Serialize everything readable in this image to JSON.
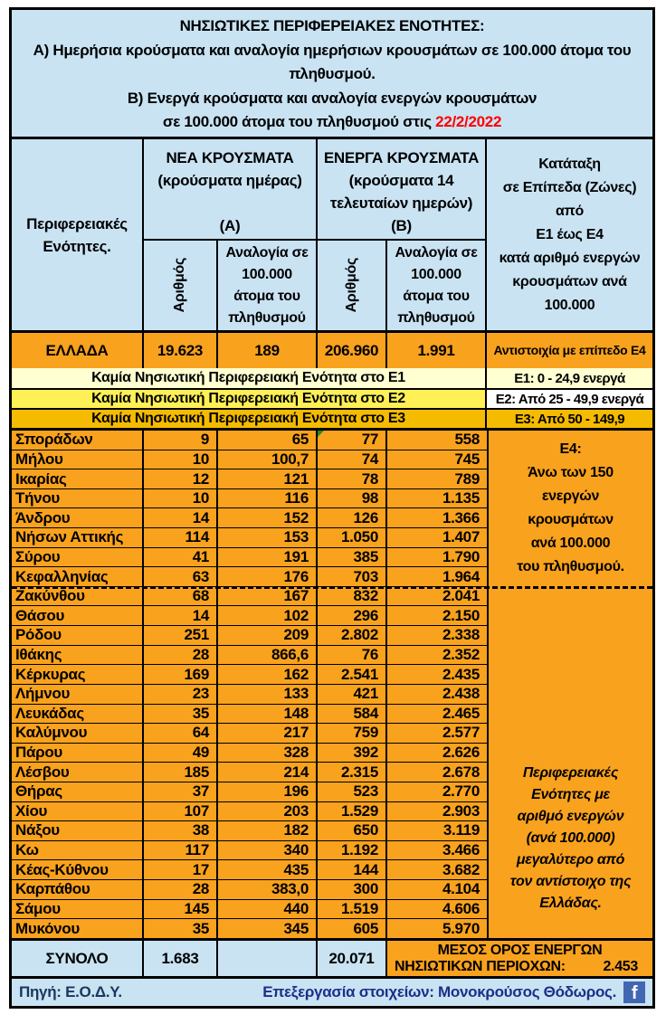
{
  "colors": {
    "light_blue": "#C9E3F3",
    "orange": "#F9A21D",
    "e1_yellow": "#FFFFD2",
    "e2_yellow": "#FFF056",
    "e3_gold": "#F4BB00",
    "white": "#FFFFFF",
    "date_red": "#FF0000",
    "facebook_blue": "#4267B2",
    "flag_green": "#1E8C1E"
  },
  "title": {
    "heading": "ΝΗΣΙΩΤΙΚΕΣ ΠΕΡΙΦΕΡΕΙΑΚΕΣ ΕΝΟΤΗΤΕΣ:",
    "line_a": "Α) Ημερήσια κρούσματα και αναλογία ημερήσιων κρουσμάτων σε 100.000 άτομα του πληθυσμού.",
    "line_b": "Β) Ενεργά κρούσματα και αναλογία ενεργών κρουσμάτων",
    "line_c": "σε 100.000 άτομα του πληθυσμού στις",
    "date": "22/2/2022"
  },
  "header": {
    "region_col": "Περιφερειακές Ενότητες.",
    "group_a": {
      "title": "ΝΕΑ ΚΡΟΥΣΜΑΤΑ\n(κρούσματα ημέρας)",
      "label": "(Α)",
      "sub_number": "Αριθμός",
      "sub_ratio": "Αναλογία σε 100.000 άτομα του πληθυσμού"
    },
    "group_b": {
      "title": "ΕΝΕΡΓΑ ΚΡΟΥΣΜΑΤΑ\n(κρούσματα 14\nτελευταίων ημερών)",
      "label": "(Β)",
      "sub_number": "Αριθμός",
      "sub_ratio": "Αναλογία σε 100.000 άτομα του πληθυσμού"
    },
    "zone_col": "Κατάταξη\nσε Επίπεδα (Ζώνες)\nαπό\nΕ1 έως Ε4\nκατά αριθμό ενεργών\nκρουσμάτων ανά\n100.000"
  },
  "greece_row": {
    "name": "ΕΛΛΑΔΑ",
    "new_cases": "19.623",
    "new_ratio": "189",
    "active_cases": "206.960",
    "active_ratio": "1.991",
    "zone": "Αντιστοιχία με επίπεδο Ε4"
  },
  "zone_rows": [
    {
      "label": "Καμία Νησιωτική Περιφερειακή Ενότητα στο Ε1",
      "range": "Ε1: 0 - 24,9 ενεργά",
      "row_color": "#FFFFD2",
      "range_color": "#FFFFD2"
    },
    {
      "label": "Καμία Νησιωτική Περιφερειακή Ενότητα στο Ε2",
      "range": "Ε2: Από 25 - 49,9 ενεργά",
      "row_color": "#FFF056",
      "range_color": "#FFFFFF"
    },
    {
      "label": "Καμία Νησιωτική Περιφερειακή Ενότητα στο Ε3",
      "range": "Ε3: Από 50 - 149,9",
      "row_color": "#F4BB00",
      "range_color": "#F4BB00"
    }
  ],
  "rows": [
    {
      "name": "Σποράδων",
      "new_cases": "9",
      "new_ratio": "65",
      "active_cases": "77",
      "active_ratio": "558"
    },
    {
      "name": "Μήλου",
      "new_cases": "10",
      "new_ratio": "100,7",
      "active_cases": "74",
      "active_ratio": "745"
    },
    {
      "name": "Ικαρίας",
      "new_cases": "12",
      "new_ratio": "121",
      "active_cases": "78",
      "active_ratio": "789"
    },
    {
      "name": "Τήνου",
      "new_cases": "10",
      "new_ratio": "116",
      "active_cases": "98",
      "active_ratio": "1.135"
    },
    {
      "name": "Άνδρου",
      "new_cases": "14",
      "new_ratio": "152",
      "active_cases": "126",
      "active_ratio": "1.366"
    },
    {
      "name": "Νήσων Αττικής",
      "new_cases": "114",
      "new_ratio": "153",
      "active_cases": "1.050",
      "active_ratio": "1.407"
    },
    {
      "name": "Σύρου",
      "new_cases": "41",
      "new_ratio": "191",
      "active_cases": "385",
      "active_ratio": "1.790"
    },
    {
      "name": "Κεφαλληνίας",
      "new_cases": "63",
      "new_ratio": "176",
      "active_cases": "703",
      "active_ratio": "1.964"
    },
    {
      "name": "Ζακύνθου",
      "new_cases": "68",
      "new_ratio": "167",
      "active_cases": "832",
      "active_ratio": "2.041"
    },
    {
      "name": "Θάσου",
      "new_cases": "14",
      "new_ratio": "102",
      "active_cases": "296",
      "active_ratio": "2.150"
    },
    {
      "name": "Ρόδου",
      "new_cases": "251",
      "new_ratio": "209",
      "active_cases": "2.802",
      "active_ratio": "2.338"
    },
    {
      "name": "Ιθάκης",
      "new_cases": "28",
      "new_ratio": "866,6",
      "active_cases": "76",
      "active_ratio": "2.352"
    },
    {
      "name": "Κέρκυρας",
      "new_cases": "169",
      "new_ratio": "162",
      "active_cases": "2.541",
      "active_ratio": "2.435"
    },
    {
      "name": "Λήμνου",
      "new_cases": "23",
      "new_ratio": "133",
      "active_cases": "421",
      "active_ratio": "2.438"
    },
    {
      "name": "Λευκάδας",
      "new_cases": "35",
      "new_ratio": "148",
      "active_cases": "584",
      "active_ratio": "2.465"
    },
    {
      "name": "Καλύμνου",
      "new_cases": "64",
      "new_ratio": "217",
      "active_cases": "759",
      "active_ratio": "2.577"
    },
    {
      "name": "Πάρου",
      "new_cases": "49",
      "new_ratio": "328",
      "active_cases": "392",
      "active_ratio": "2.626"
    },
    {
      "name": "Λέσβου",
      "new_cases": "185",
      "new_ratio": "214",
      "active_cases": "2.315",
      "active_ratio": "2.678"
    },
    {
      "name": "Θήρας",
      "new_cases": "37",
      "new_ratio": "196",
      "active_cases": "523",
      "active_ratio": "2.770"
    },
    {
      "name": "Χίου",
      "new_cases": "107",
      "new_ratio": "203",
      "active_cases": "1.529",
      "active_ratio": "2.903"
    },
    {
      "name": "Νάξου",
      "new_cases": "38",
      "new_ratio": "182",
      "active_cases": "650",
      "active_ratio": "3.119"
    },
    {
      "name": "Κω",
      "new_cases": "117",
      "new_ratio": "340",
      "active_cases": "1.192",
      "active_ratio": "3.466"
    },
    {
      "name": "Κέας-Κύθνου",
      "new_cases": "17",
      "new_ratio": "435",
      "active_cases": "144",
      "active_ratio": "3.682"
    },
    {
      "name": "Καρπάθου",
      "new_cases": "28",
      "new_ratio": "383,0",
      "active_cases": "300",
      "active_ratio": "4.104"
    },
    {
      "name": "Σάμου",
      "new_cases": "145",
      "new_ratio": "440",
      "active_cases": "1.519",
      "active_ratio": "4.606"
    },
    {
      "name": "Μυκόνου",
      "new_cases": "35",
      "new_ratio": "345",
      "active_cases": "605",
      "active_ratio": "5.970"
    }
  ],
  "dashed_after_index": 8,
  "zone_e4_text": "Ε4:\nΆνω των 150\nενεργών\nκρουσμάτων\nανά 100.000\nτου πληθυσμού.",
  "zone_note_text": "Περιφερειακές\nΕνότητες με\nαριθμό ενεργών\n(ανά 100.000)\nμεγαλύτερο από\nτον αντίστοιχο της\nΕλλάδας.",
  "total_row": {
    "name": "ΣΥΝΟΛΟ",
    "new_cases": "1.683",
    "new_ratio": "",
    "active_cases": "20.071",
    "avg_label_line1": "ΜΕΣΟΣ ΟΡΟΣ ΕΝΕΡΓΩΝ",
    "avg_label_line2": "ΝΗΣΙΩΤΙΚΩΝ ΠΕΡΙΟΧΩΝ:",
    "avg_value": "2.453"
  },
  "footer": {
    "source": "Πηγή: Ε.Ο.Δ.Υ.",
    "credit": "Επεξεργασία στοιχείων: Μονοκρούσος Θόδωρος.",
    "facebook_glyph": "f"
  }
}
